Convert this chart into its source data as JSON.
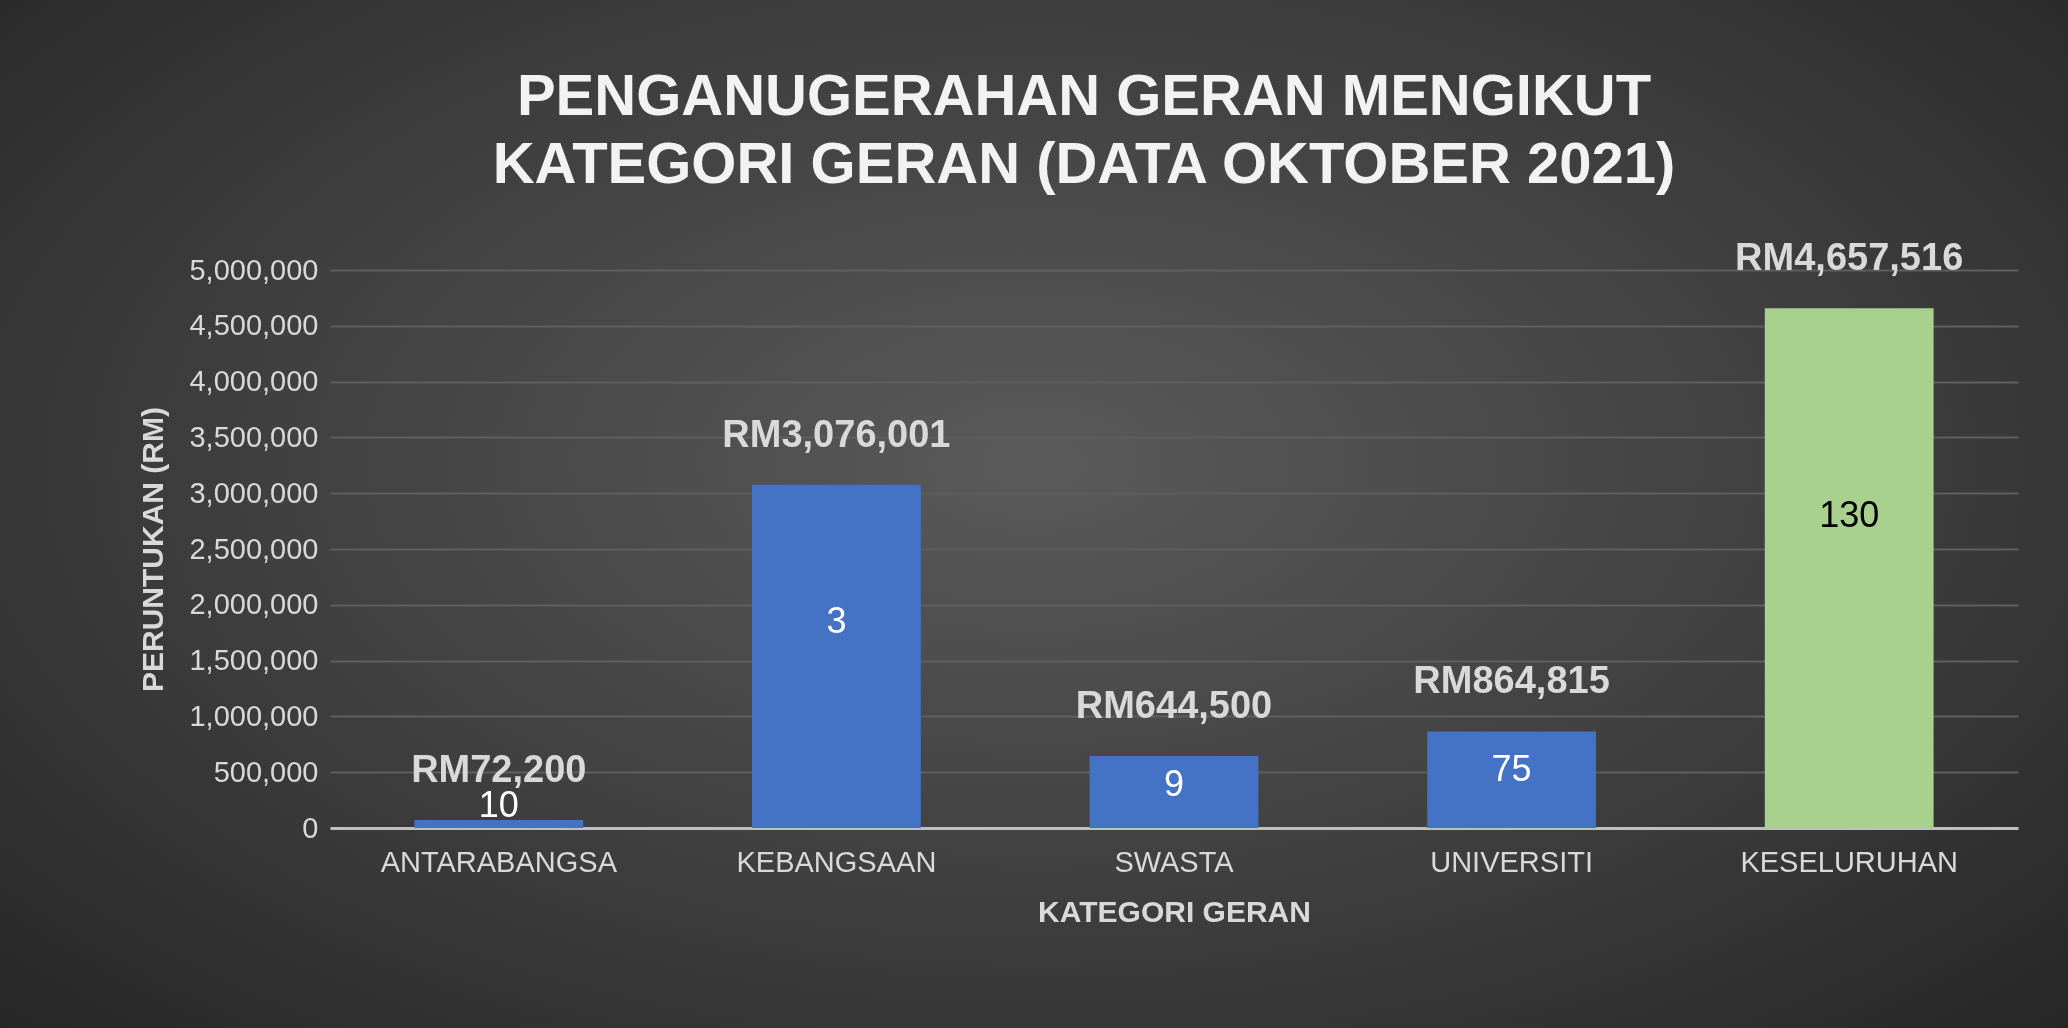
{
  "chart_data": {
    "type": "bar",
    "title": [
      "PENGANUGERAHAN GERAN MENGIKUT",
      "KATEGORI GERAN (DATA OKTOBER 2021)"
    ],
    "xlabel": "KATEGORI GERAN",
    "ylabel": "PERUNTUKAN (RM)",
    "categories": [
      "ANTARABANGSA",
      "KEBANGSAAN",
      "SWASTA",
      "UNIVERSITI",
      "KESELURUHAN"
    ],
    "values": [
      72200,
      3076001,
      644500,
      864815,
      4657516
    ],
    "colors": [
      "#4472c4",
      "#4472c4",
      "#4472c4",
      "#4472c4",
      "#a9d18e"
    ],
    "value_labels": [
      "RM72,200",
      "RM3,076,001",
      "RM644,500",
      "RM864,815",
      "RM4,657,516"
    ],
    "annotations": [
      "10",
      "3",
      "9",
      "75",
      "130"
    ],
    "ylim": [
      0,
      5000000
    ],
    "yticks": [
      0,
      {
        "value": 500000,
        "label": "500,000"
      },
      {
        "value": 1000000,
        "label": "1,000,000"
      },
      {
        "value": 1500000,
        "label": "1,500,000"
      },
      {
        "value": 2000000,
        "label": "2,000,000"
      },
      {
        "value": 2500000,
        "label": "2,500,000"
      },
      {
        "value": 3000000,
        "label": "3,000,000"
      },
      {
        "value": 3500000,
        "label": "3,500,000"
      },
      {
        "value": 4000000,
        "label": "4,000,000"
      },
      {
        "value": 4500000,
        "label": "4,500,000"
      },
      {
        "value": 5000000,
        "label": "5,000,000"
      }
    ],
    "grid": "y",
    "legend": false
  }
}
